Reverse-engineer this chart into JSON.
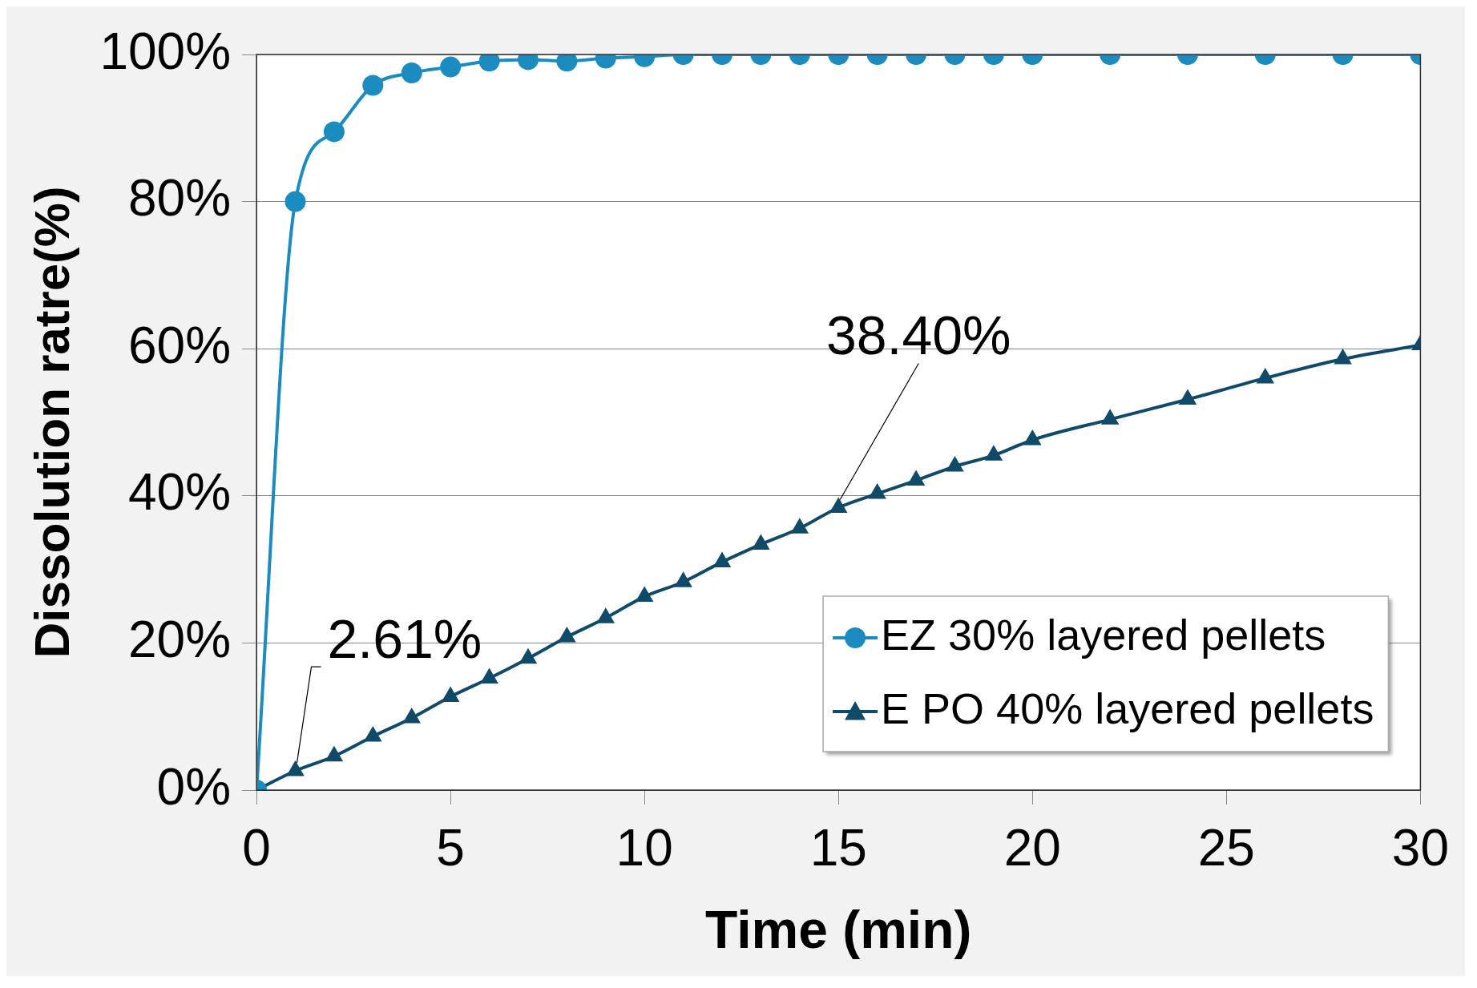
{
  "chart_data": {
    "type": "line",
    "xlabel": "Time (min)",
    "ylabel": "Dissolution ratre(%)",
    "xlim": [
      0,
      30
    ],
    "xticks": [
      0,
      5,
      10,
      15,
      20,
      25,
      30
    ],
    "ylim": [
      0,
      100
    ],
    "yticks": [
      {
        "value": 0,
        "label": "0%"
      },
      {
        "value": 20,
        "label": "20%"
      },
      {
        "value": 40,
        "label": "40%"
      },
      {
        "value": 60,
        "label": "60%"
      },
      {
        "value": 80,
        "label": "80%"
      },
      {
        "value": 100,
        "label": "100%"
      }
    ],
    "grid": "y",
    "legend": "bottom right",
    "line_style": "solid",
    "series": [
      {
        "name": "EZ 30% layered pellets",
        "color": "#1a8cbf",
        "marker": "circle",
        "x": [
          0,
          1,
          2,
          3,
          4,
          5,
          6,
          7,
          8,
          9,
          10,
          11,
          12,
          13,
          14,
          15,
          16,
          17,
          18,
          19,
          20,
          22,
          24,
          26,
          28,
          30
        ],
        "values": [
          0,
          80,
          89.5,
          95.8,
          97.5,
          98.3,
          99.1,
          99.3,
          99.1,
          99.5,
          99.7,
          100,
          100,
          100,
          100,
          100,
          100,
          100,
          100,
          100,
          100,
          100,
          100,
          100,
          100,
          100
        ]
      },
      {
        "name": "E PO 40% layered pellets",
        "color": "#0f4a68",
        "marker": "triangle",
        "x": [
          0,
          1,
          2,
          3,
          4,
          5,
          6,
          7,
          8,
          9,
          10,
          11,
          12,
          13,
          14,
          15,
          16,
          17,
          18,
          19,
          20,
          22,
          24,
          26,
          28,
          30
        ],
        "values": [
          0,
          2.61,
          4.6,
          7.3,
          9.8,
          12.7,
          15.2,
          17.9,
          20.8,
          23.4,
          26.3,
          28.3,
          31.0,
          33.4,
          35.6,
          38.4,
          40.3,
          42.1,
          44.0,
          45.5,
          47.6,
          50.4,
          53.1,
          56.0,
          58.6,
          60.5
        ]
      }
    ],
    "annotations": [
      {
        "text": "2.61%",
        "x": 1,
        "y": 2.61
      },
      {
        "text": "38.40%",
        "x": 15,
        "y": 38.4
      }
    ]
  }
}
